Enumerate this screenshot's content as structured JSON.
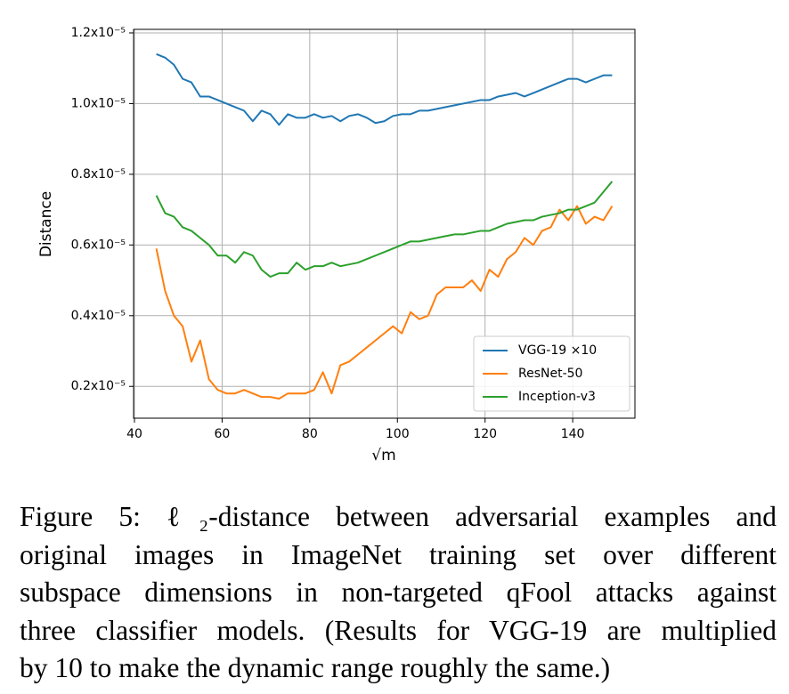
{
  "chart_data": {
    "type": "line",
    "xlabel": "√m",
    "ylabel": "Distance",
    "grid": true,
    "legend": "lower right",
    "xlim": [
      39.8,
      154.2
    ],
    "xticks": [
      40,
      60,
      80,
      100,
      120,
      140
    ],
    "ylim": [
      1.1e-06,
      1.21e-05
    ],
    "yticks": [
      {
        "value": 2e-06,
        "label": "0.2x10⁻⁵"
      },
      {
        "value": 4e-06,
        "label": "0.4x10⁻⁵"
      },
      {
        "value": 6e-06,
        "label": "0.6x10⁻⁵"
      },
      {
        "value": 8e-06,
        "label": "0.8x10⁻⁵"
      },
      {
        "value": 1e-05,
        "label": "1.0x10⁻⁵"
      },
      {
        "value": 1.2e-05,
        "label": "1.2x10⁻⁵"
      }
    ],
    "x": [
      45,
      47,
      49,
      51,
      53,
      55,
      57,
      59,
      61,
      63,
      65,
      67,
      69,
      71,
      73,
      75,
      77,
      79,
      81,
      83,
      85,
      87,
      89,
      91,
      93,
      95,
      97,
      99,
      101,
      103,
      105,
      107,
      109,
      111,
      113,
      115,
      117,
      119,
      121,
      123,
      125,
      127,
      129,
      131,
      133,
      135,
      137,
      139,
      141,
      143,
      145,
      147,
      149
    ],
    "series": [
      {
        "name": "VGG-19 ×10",
        "color": "#1f77b4",
        "values": [
          1.14e-05,
          1.13e-05,
          1.11e-05,
          1.07e-05,
          1.06e-05,
          1.02e-05,
          1.02e-05,
          1.01e-05,
          1e-05,
          9.9e-06,
          9.8e-06,
          9.5e-06,
          9.8e-06,
          9.7e-06,
          9.4e-06,
          9.7e-06,
          9.6e-06,
          9.6e-06,
          9.7e-06,
          9.6e-06,
          9.65e-06,
          9.5e-06,
          9.65e-06,
          9.7e-06,
          9.6e-06,
          9.45e-06,
          9.5e-06,
          9.65e-06,
          9.7e-06,
          9.7e-06,
          9.8e-06,
          9.8e-06,
          9.85e-06,
          9.9e-06,
          9.95e-06,
          1e-05,
          1.005e-05,
          1.01e-05,
          1.01e-05,
          1.02e-05,
          1.025e-05,
          1.03e-05,
          1.02e-05,
          1.03e-05,
          1.04e-05,
          1.05e-05,
          1.06e-05,
          1.07e-05,
          1.07e-05,
          1.06e-05,
          1.07e-05,
          1.08e-05,
          1.08e-05
        ]
      },
      {
        "name": "ResNet-50",
        "color": "#ff7f0e",
        "values": [
          5.9e-06,
          4.7e-06,
          4e-06,
          3.7e-06,
          2.7e-06,
          3.3e-06,
          2.2e-06,
          1.9e-06,
          1.8e-06,
          1.8e-06,
          1.9e-06,
          1.8e-06,
          1.7e-06,
          1.7e-06,
          1.65e-06,
          1.8e-06,
          1.8e-06,
          1.8e-06,
          1.9e-06,
          2.4e-06,
          1.8e-06,
          2.6e-06,
          2.7e-06,
          2.9e-06,
          3.1e-06,
          3.3e-06,
          3.5e-06,
          3.7e-06,
          3.5e-06,
          4.1e-06,
          3.9e-06,
          4e-06,
          4.6e-06,
          4.8e-06,
          4.8e-06,
          4.8e-06,
          5e-06,
          4.7e-06,
          5.3e-06,
          5.1e-06,
          5.6e-06,
          5.8e-06,
          6.2e-06,
          6e-06,
          6.4e-06,
          6.5e-06,
          7e-06,
          6.7e-06,
          7.1e-06,
          6.6e-06,
          6.8e-06,
          6.7e-06,
          7.1e-06
        ]
      },
      {
        "name": "Inception-v3",
        "color": "#2ca02c",
        "values": [
          7.4e-06,
          6.9e-06,
          6.8e-06,
          6.5e-06,
          6.4e-06,
          6.2e-06,
          6e-06,
          5.7e-06,
          5.7e-06,
          5.5e-06,
          5.8e-06,
          5.7e-06,
          5.3e-06,
          5.1e-06,
          5.2e-06,
          5.2e-06,
          5.5e-06,
          5.3e-06,
          5.4e-06,
          5.4e-06,
          5.5e-06,
          5.4e-06,
          5.45e-06,
          5.5e-06,
          5.6e-06,
          5.7e-06,
          5.8e-06,
          5.9e-06,
          6e-06,
          6.1e-06,
          6.1e-06,
          6.15e-06,
          6.2e-06,
          6.25e-06,
          6.3e-06,
          6.3e-06,
          6.35e-06,
          6.4e-06,
          6.4e-06,
          6.5e-06,
          6.6e-06,
          6.65e-06,
          6.7e-06,
          6.7e-06,
          6.8e-06,
          6.85e-06,
          6.9e-06,
          7e-06,
          7e-06,
          7.1e-06,
          7.2e-06,
          7.5e-06,
          7.8e-06
        ]
      }
    ]
  },
  "caption": {
    "lines": [
      "Figure 5: ℓ₂-distance between adversarial examples and",
      "original images in ImageNet training set over different",
      "subspace dimensions in non-targeted qFool attacks against",
      "three classifier models. (Results for VGG-19 are multiplied",
      "by 10 to make the dynamic range roughly the same.)"
    ]
  }
}
